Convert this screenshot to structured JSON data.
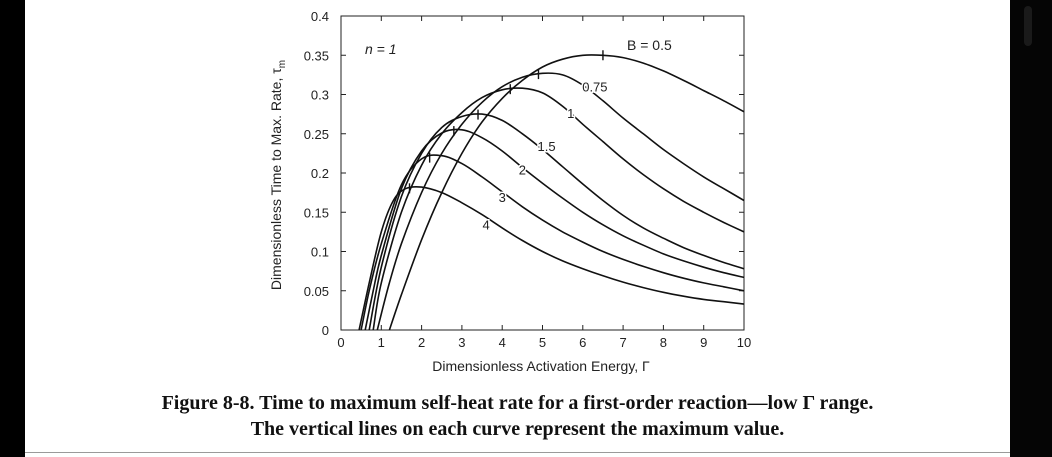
{
  "chart_data": {
    "type": "line",
    "xlabel": "Dimensionless Activation Energy, Γ",
    "ylabel": "Dimensionless Time to Max. Rate, τ",
    "ylabel_sub": "m",
    "xlim": [
      0,
      10
    ],
    "ylim": [
      0,
      0.4
    ],
    "x_ticks": [
      "0",
      "1",
      "2",
      "3",
      "4",
      "5",
      "6",
      "7",
      "8",
      "9",
      "10"
    ],
    "y_ticks": [
      "0",
      "0.05",
      "0.1",
      "0.15",
      "0.2",
      "0.25",
      "0.3",
      "0.35",
      "0.4"
    ],
    "annotations": {
      "n": "n = 1",
      "B": "B = 0.5"
    },
    "series": [
      {
        "name": "0.5",
        "label": "B = 0.5",
        "x": [
          1.2,
          1.5,
          2,
          2.5,
          3,
          3.5,
          4,
          4.5,
          5,
          5.5,
          6,
          6.5,
          7,
          7.5,
          8,
          8.5,
          9,
          9.5,
          10
        ],
        "y": [
          0,
          0.045,
          0.115,
          0.175,
          0.225,
          0.265,
          0.295,
          0.318,
          0.335,
          0.345,
          0.35,
          0.35,
          0.347,
          0.34,
          0.33,
          0.318,
          0.305,
          0.292,
          0.278
        ],
        "peak_x": 6.5
      },
      {
        "name": "0.75",
        "label": "0.75",
        "x": [
          0.9,
          1.2,
          1.5,
          2,
          2.5,
          3,
          3.5,
          4,
          4.5,
          5,
          5.5,
          6,
          6.5,
          7,
          7.5,
          8,
          8.5,
          9,
          9.5,
          10
        ],
        "y": [
          0,
          0.06,
          0.11,
          0.175,
          0.225,
          0.262,
          0.29,
          0.31,
          0.322,
          0.327,
          0.325,
          0.312,
          0.292,
          0.27,
          0.25,
          0.23,
          0.212,
          0.195,
          0.18,
          0.165
        ],
        "peak_x": 4.9
      },
      {
        "name": "1",
        "label": "1",
        "x": [
          0.8,
          1,
          1.5,
          2,
          2.5,
          3,
          3.5,
          4,
          4.5,
          5,
          5.5,
          6,
          6.5,
          7,
          7.5,
          8,
          8.5,
          9,
          9.5,
          10
        ],
        "y": [
          0,
          0.06,
          0.15,
          0.21,
          0.25,
          0.277,
          0.296,
          0.306,
          0.308,
          0.302,
          0.285,
          0.262,
          0.24,
          0.218,
          0.198,
          0.18,
          0.164,
          0.15,
          0.137,
          0.125
        ],
        "peak_x": 4.2
      },
      {
        "name": "1.5",
        "label": "1.5",
        "x": [
          0.7,
          1,
          1.5,
          2,
          2.5,
          3,
          3.5,
          4,
          4.5,
          5,
          5.5,
          6,
          6.5,
          7,
          7.5,
          8,
          8.5,
          9,
          9.5,
          10
        ],
        "y": [
          0,
          0.08,
          0.17,
          0.225,
          0.258,
          0.272,
          0.275,
          0.267,
          0.25,
          0.23,
          0.208,
          0.186,
          0.165,
          0.146,
          0.13,
          0.117,
          0.105,
          0.095,
          0.086,
          0.078
        ],
        "peak_x": 3.4
      },
      {
        "name": "2",
        "label": "2",
        "x": [
          0.6,
          0.8,
          1,
          1.5,
          2,
          2.5,
          3,
          3.5,
          4,
          4.5,
          5,
          5.5,
          6,
          6.5,
          7,
          7.5,
          8,
          8.5,
          9,
          9.5,
          10
        ],
        "y": [
          0,
          0.05,
          0.095,
          0.18,
          0.228,
          0.251,
          0.255,
          0.245,
          0.228,
          0.207,
          0.187,
          0.168,
          0.15,
          0.134,
          0.12,
          0.108,
          0.097,
          0.088,
          0.08,
          0.073,
          0.067
        ],
        "peak_x": 2.8
      },
      {
        "name": "3",
        "label": "3",
        "x": [
          0.5,
          0.7,
          1,
          1.5,
          2,
          2.5,
          3,
          3.5,
          4,
          4.5,
          5,
          5.5,
          6,
          6.5,
          7,
          7.5,
          8,
          8.5,
          9,
          9.5,
          10
        ],
        "y": [
          0,
          0.05,
          0.11,
          0.185,
          0.218,
          0.222,
          0.212,
          0.195,
          0.176,
          0.157,
          0.14,
          0.125,
          0.112,
          0.1,
          0.09,
          0.081,
          0.073,
          0.066,
          0.06,
          0.055,
          0.05
        ],
        "peak_x": 2.2
      },
      {
        "name": "4",
        "label": "4",
        "x": [
          0.45,
          0.7,
          1,
          1.3,
          1.6,
          2,
          2.5,
          3,
          3.5,
          4,
          4.5,
          5,
          5.5,
          6,
          6.5,
          7,
          7.5,
          8,
          8.5,
          9,
          9.5,
          10
        ],
        "y": [
          0,
          0.06,
          0.125,
          0.165,
          0.18,
          0.182,
          0.175,
          0.162,
          0.147,
          0.13,
          0.114,
          0.1,
          0.088,
          0.078,
          0.069,
          0.061,
          0.054,
          0.048,
          0.043,
          0.039,
          0.036,
          0.033
        ],
        "peak_x": 1.7
      }
    ],
    "curve_labels": [
      {
        "text": "0.75",
        "x": 6.3,
        "y": 0.304
      },
      {
        "text": "1",
        "x": 5.7,
        "y": 0.27
      },
      {
        "text": "1.5",
        "x": 5.1,
        "y": 0.228
      },
      {
        "text": "2",
        "x": 4.5,
        "y": 0.198
      },
      {
        "text": "3",
        "x": 4.0,
        "y": 0.163
      },
      {
        "text": "4",
        "x": 3.6,
        "y": 0.128
      }
    ]
  },
  "caption": {
    "line1": "Figure 8-8. Time to maximum self-heat rate for a first-order reaction—low Γ range.",
    "line2": "The vertical lines on each curve represent the maximum value."
  }
}
